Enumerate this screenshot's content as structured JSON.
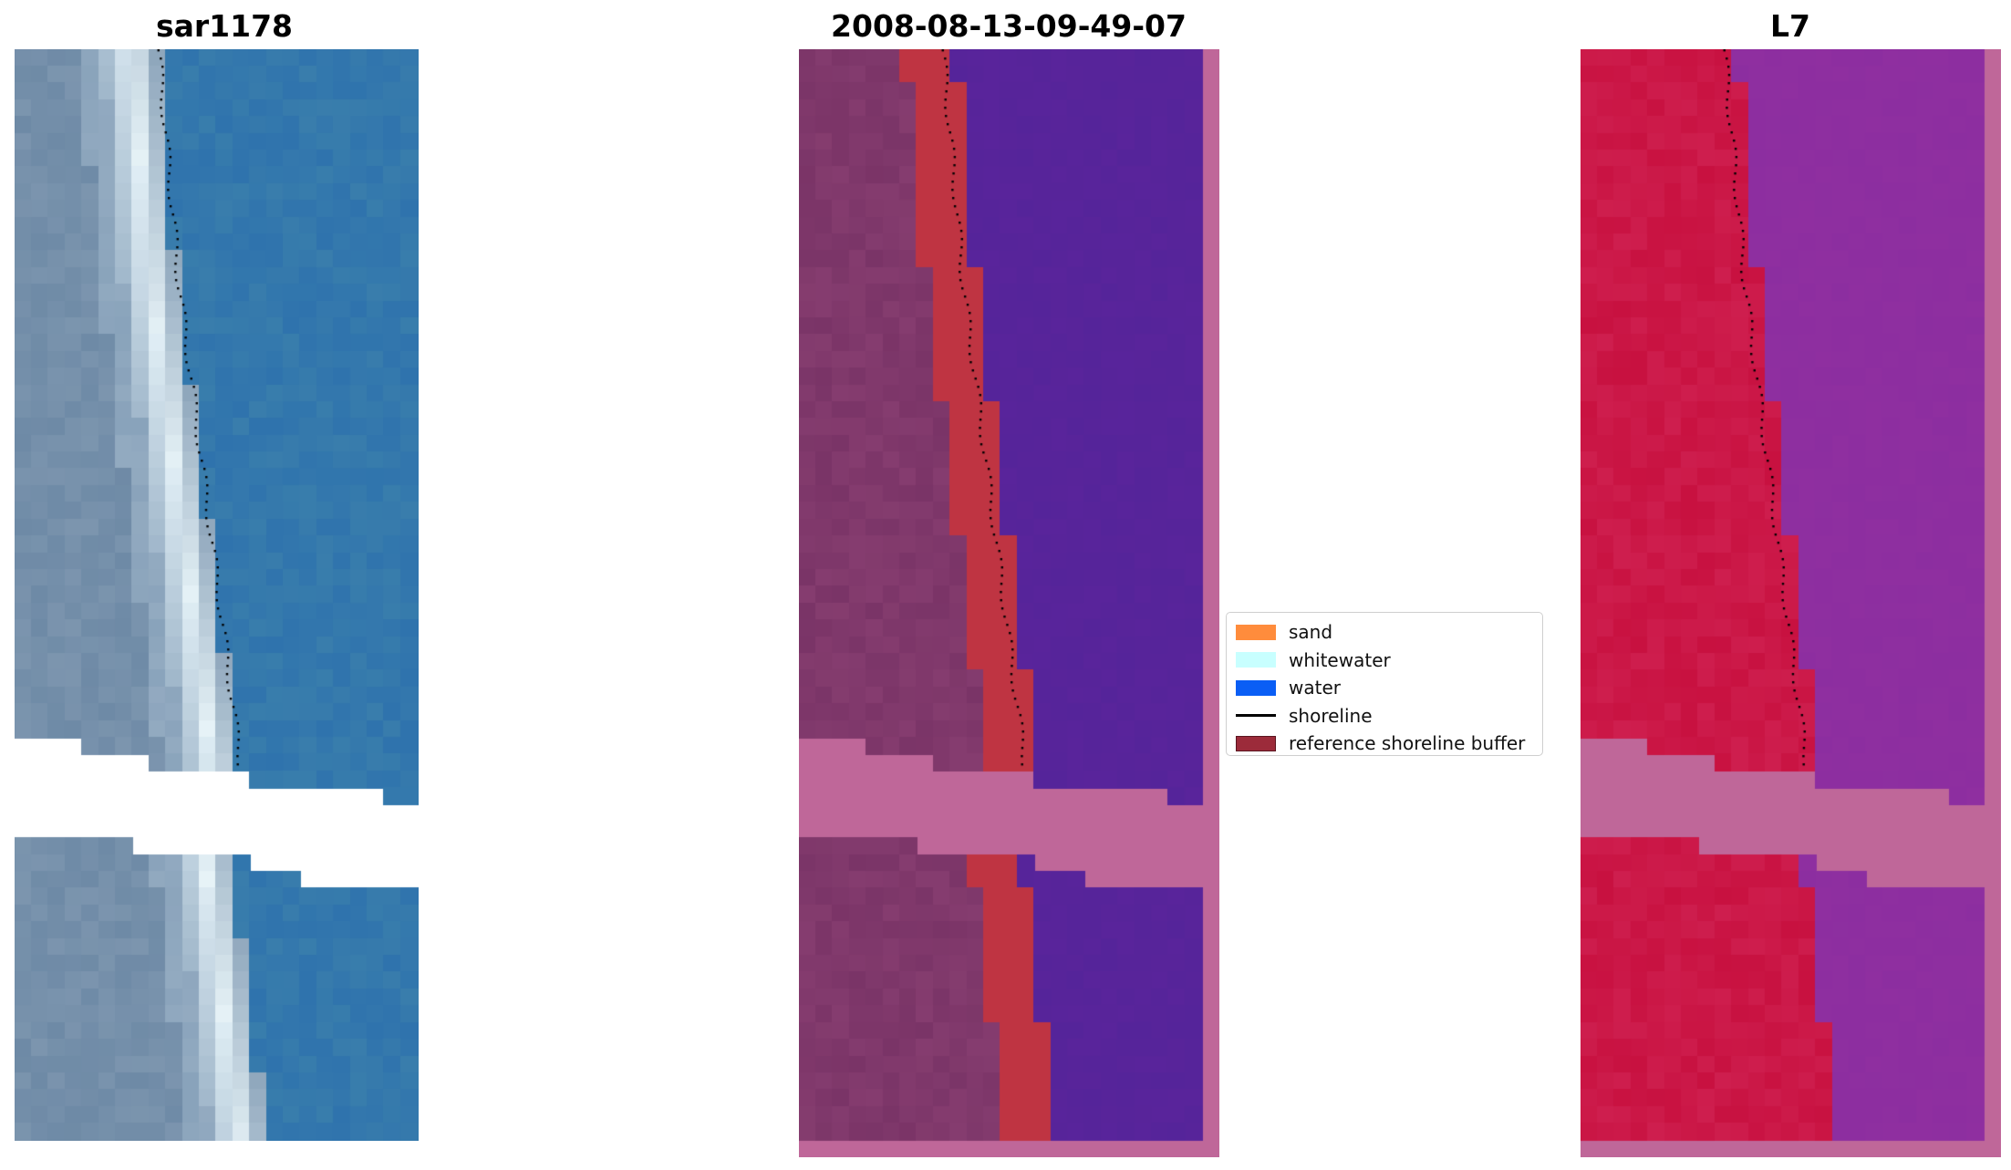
{
  "panels": [
    {
      "title": "sar1178",
      "kind": "rgb"
    },
    {
      "title": "2008-08-13-09-49-07",
      "kind": "classified"
    },
    {
      "title": "L7",
      "kind": "index"
    }
  ],
  "legend": {
    "items": [
      {
        "label": "sand",
        "type": "patch",
        "color": "#ff8c3c"
      },
      {
        "label": "whitewater",
        "type": "patch",
        "color": "#c8ffff"
      },
      {
        "label": "water",
        "type": "patch",
        "color": "#0a5ef5"
      },
      {
        "label": "shoreline",
        "type": "line",
        "color": "#000000"
      },
      {
        "label": "reference shoreline buffer",
        "type": "patch",
        "color": "#9c2b3a"
      }
    ]
  },
  "colors": {
    "rgb_land": "#6e8aa6",
    "rgb_surf": "#e8f4f8",
    "rgb_sea": "#2f73ad",
    "class_land": "#7a3467",
    "class_sand": "#bf3442",
    "class_water": "#55249a",
    "class_mask": "#bf6799",
    "index_land": "#c81140",
    "index_water": "#8f2fa0",
    "index_mask": "#bf6799",
    "shoreline_dots": "#000000"
  }
}
